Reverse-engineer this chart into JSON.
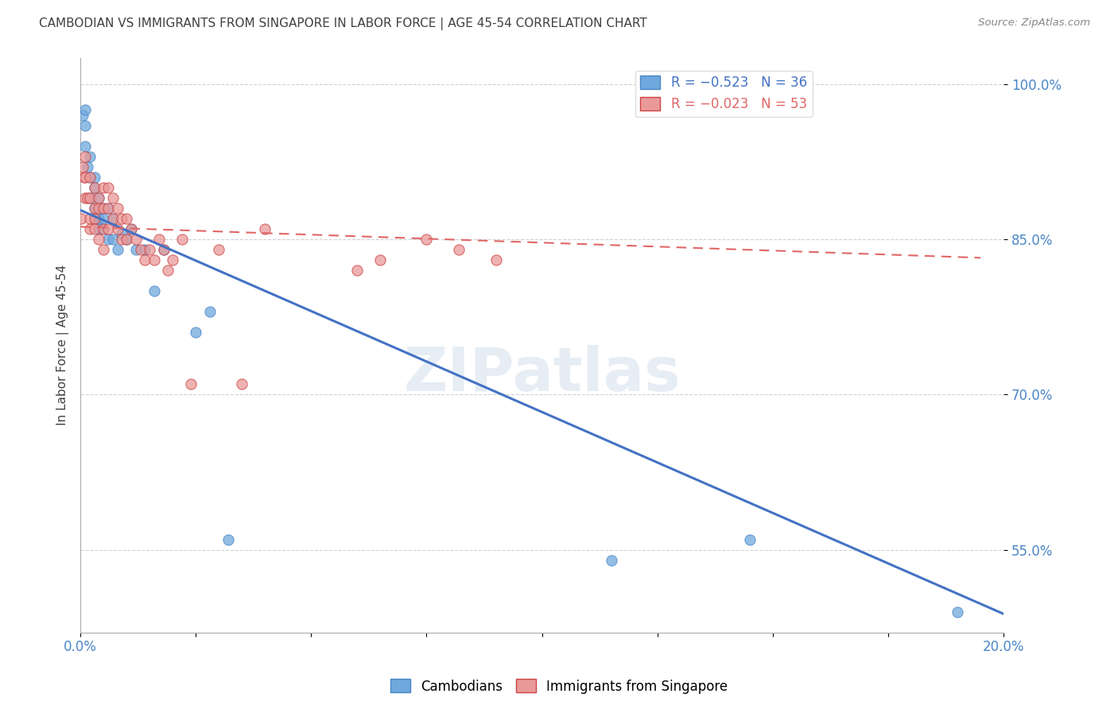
{
  "title": "CAMBODIAN VS IMMIGRANTS FROM SINGAPORE IN LABOR FORCE | AGE 45-54 CORRELATION CHART",
  "source": "Source: ZipAtlas.com",
  "ylabel": "In Labor Force | Age 45-54",
  "xmin": 0.0,
  "xmax": 0.2,
  "ymin": 0.47,
  "ymax": 1.025,
  "yticks": [
    0.55,
    0.7,
    0.85,
    1.0
  ],
  "ytick_labels": [
    "55.0%",
    "70.0%",
    "85.0%",
    "100.0%"
  ],
  "xticks": [
    0.0,
    0.025,
    0.05,
    0.075,
    0.1,
    0.125,
    0.15,
    0.175,
    0.2
  ],
  "watermark": "ZIPatlas",
  "cambodian_x": [
    0.0005,
    0.001,
    0.001,
    0.001,
    0.0015,
    0.002,
    0.002,
    0.002,
    0.003,
    0.003,
    0.003,
    0.003,
    0.004,
    0.004,
    0.004,
    0.005,
    0.005,
    0.005,
    0.006,
    0.006,
    0.007,
    0.007,
    0.008,
    0.009,
    0.01,
    0.011,
    0.012,
    0.014,
    0.016,
    0.018,
    0.025,
    0.028,
    0.032,
    0.115,
    0.145,
    0.19
  ],
  "cambodian_y": [
    0.97,
    0.975,
    0.96,
    0.94,
    0.92,
    0.93,
    0.91,
    0.89,
    0.9,
    0.88,
    0.87,
    0.91,
    0.89,
    0.87,
    0.86,
    0.88,
    0.86,
    0.87,
    0.88,
    0.85,
    0.87,
    0.85,
    0.84,
    0.855,
    0.85,
    0.86,
    0.84,
    0.84,
    0.8,
    0.84,
    0.76,
    0.78,
    0.56,
    0.54,
    0.56,
    0.49
  ],
  "cambodian_color": "#6fa8dc",
  "cambodian_edge": "#4a86c8",
  "singapore_x": [
    0.0002,
    0.0005,
    0.0008,
    0.001,
    0.001,
    0.001,
    0.0015,
    0.002,
    0.002,
    0.002,
    0.002,
    0.003,
    0.003,
    0.003,
    0.003,
    0.004,
    0.004,
    0.004,
    0.005,
    0.005,
    0.005,
    0.005,
    0.006,
    0.006,
    0.006,
    0.007,
    0.007,
    0.008,
    0.008,
    0.009,
    0.009,
    0.01,
    0.01,
    0.011,
    0.012,
    0.013,
    0.014,
    0.015,
    0.016,
    0.017,
    0.018,
    0.019,
    0.02,
    0.022,
    0.024,
    0.03,
    0.035,
    0.04,
    0.06,
    0.065,
    0.075,
    0.082,
    0.09
  ],
  "singapore_y": [
    0.87,
    0.92,
    0.91,
    0.93,
    0.91,
    0.89,
    0.89,
    0.91,
    0.89,
    0.87,
    0.86,
    0.9,
    0.88,
    0.87,
    0.86,
    0.89,
    0.88,
    0.85,
    0.9,
    0.88,
    0.86,
    0.84,
    0.9,
    0.88,
    0.86,
    0.89,
    0.87,
    0.88,
    0.86,
    0.87,
    0.85,
    0.87,
    0.85,
    0.86,
    0.85,
    0.84,
    0.83,
    0.84,
    0.83,
    0.85,
    0.84,
    0.82,
    0.83,
    0.85,
    0.71,
    0.84,
    0.71,
    0.86,
    0.82,
    0.83,
    0.85,
    0.84,
    0.83
  ],
  "singapore_color": "#ea9999",
  "singapore_edge": "#cc4444",
  "blue_line_x0": 0.0,
  "blue_line_y0": 0.878,
  "blue_line_x1": 0.2,
  "blue_line_y1": 0.488,
  "pink_line_x0": 0.0,
  "pink_line_y0": 0.862,
  "pink_line_x1": 0.195,
  "pink_line_y1": 0.832,
  "blue_line_color": "#4472c4",
  "pink_line_color": "#e06666",
  "grid_color": "#cccccc",
  "title_color": "#404040",
  "axis_color": "#4a86c8",
  "background_color": "#ffffff"
}
